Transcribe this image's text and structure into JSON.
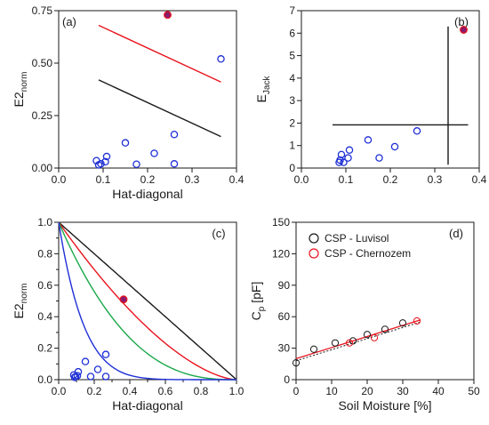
{
  "colors": {
    "axis": "#1a1a1a",
    "open_marker": "#1f2fd6",
    "red": "#e8141e",
    "black": "#1a1a1a",
    "green": "#1aa84a",
    "blue": "#1f2fd6",
    "highlight_fill": "#8a1a6e"
  },
  "chart_data": [
    {
      "id": "a",
      "type": "scatter",
      "panel_label": "(a)",
      "xlabel": "Hat-diagonal",
      "ylabel_main": "E2",
      "ylabel_sub": "norm",
      "xlim": [
        0,
        0.4
      ],
      "ylim": [
        0,
        0.75
      ],
      "xticks": [
        0,
        0.1,
        0.2,
        0.3,
        0.4
      ],
      "xtick_labels": [
        "0.0",
        "0.1",
        "0.2",
        "0.3",
        "0.4"
      ],
      "yticks": [
        0,
        0.25,
        0.5,
        0.75
      ],
      "ytick_labels": [
        "0.00",
        "0.25",
        "0.50",
        "0.75"
      ],
      "points": [
        {
          "x": 0.085,
          "y": 0.035
        },
        {
          "x": 0.09,
          "y": 0.015
        },
        {
          "x": 0.095,
          "y": 0.02
        },
        {
          "x": 0.105,
          "y": 0.03
        },
        {
          "x": 0.108,
          "y": 0.055
        },
        {
          "x": 0.15,
          "y": 0.12
        },
        {
          "x": 0.175,
          "y": 0.018
        },
        {
          "x": 0.215,
          "y": 0.07
        },
        {
          "x": 0.26,
          "y": 0.16
        },
        {
          "x": 0.26,
          "y": 0.02
        },
        {
          "x": 0.365,
          "y": 0.52
        }
      ],
      "highlight_points": [
        {
          "x": 0.245,
          "y": 0.73
        }
      ],
      "lines": [
        {
          "color": "red",
          "x": [
            0.09,
            0.365
          ],
          "y": [
            0.68,
            0.41
          ]
        },
        {
          "color": "black",
          "x": [
            0.09,
            0.365
          ],
          "y": [
            0.42,
            0.15
          ]
        }
      ]
    },
    {
      "id": "b",
      "type": "scatter",
      "panel_label": "(b)",
      "xlabel": "",
      "ylabel_main": "E",
      "ylabel_sub": "Jack",
      "xlim": [
        0,
        0.4
      ],
      "ylim": [
        0,
        7
      ],
      "xticks": [
        0,
        0.1,
        0.2,
        0.3,
        0.4
      ],
      "xtick_labels": [
        "0.0",
        "0.1",
        "0.2",
        "0.3",
        "0.4"
      ],
      "yticks": [
        0,
        1,
        2,
        3,
        4,
        5,
        6,
        7
      ],
      "ytick_labels": [
        "0",
        "1",
        "2",
        "3",
        "4",
        "5",
        "6",
        "7"
      ],
      "points": [
        {
          "x": 0.085,
          "y": 0.25
        },
        {
          "x": 0.087,
          "y": 0.35
        },
        {
          "x": 0.09,
          "y": 0.6
        },
        {
          "x": 0.095,
          "y": 0.25
        },
        {
          "x": 0.105,
          "y": 0.45
        },
        {
          "x": 0.108,
          "y": 0.8
        },
        {
          "x": 0.15,
          "y": 1.25
        },
        {
          "x": 0.175,
          "y": 0.45
        },
        {
          "x": 0.21,
          "y": 0.95
        },
        {
          "x": 0.26,
          "y": 1.65
        }
      ],
      "highlight_points": [
        {
          "x": 0.365,
          "y": 6.15
        }
      ],
      "lines": [
        {
          "color": "black",
          "x": [
            0.07,
            0.375
          ],
          "y": [
            1.92,
            1.92
          ]
        },
        {
          "color": "black",
          "x": [
            0.33,
            0.33
          ],
          "y": [
            0.15,
            6.3
          ]
        }
      ]
    },
    {
      "id": "c",
      "type": "scatter",
      "panel_label": "(c)",
      "xlabel": "Hat-diagonal",
      "ylabel_main": "E2",
      "ylabel_sub": "norm",
      "xlim": [
        0,
        1.0
      ],
      "ylim": [
        0,
        1.0
      ],
      "xticks": [
        0,
        0.1,
        0.2,
        0.3,
        0.4,
        0.5,
        0.6,
        0.7,
        0.8,
        0.9,
        1.0
      ],
      "xtick_labels": [
        "0.0",
        "",
        "0.2",
        "",
        "0.4",
        "",
        "0.6",
        "",
        "0.8",
        "",
        "1.0"
      ],
      "yticks": [
        0,
        0.1,
        0.2,
        0.3,
        0.4,
        0.5,
        0.6,
        0.7,
        0.8,
        0.9,
        1.0
      ],
      "ytick_labels": [
        "0.0",
        "",
        "0.2",
        "",
        "0.4",
        "",
        "0.6",
        "",
        "0.8",
        "",
        "1.0"
      ],
      "points": [
        {
          "x": 0.085,
          "y": 0.03
        },
        {
          "x": 0.09,
          "y": 0.015
        },
        {
          "x": 0.095,
          "y": 0.02
        },
        {
          "x": 0.105,
          "y": 0.025
        },
        {
          "x": 0.11,
          "y": 0.05
        },
        {
          "x": 0.15,
          "y": 0.115
        },
        {
          "x": 0.18,
          "y": 0.02
        },
        {
          "x": 0.22,
          "y": 0.065
        },
        {
          "x": 0.265,
          "y": 0.16
        },
        {
          "x": 0.265,
          "y": 0.02
        }
      ],
      "highlight_points": [
        {
          "x": 0.365,
          "y": 0.51
        }
      ],
      "curves": [
        {
          "color": "black",
          "exponent": 1
        },
        {
          "color": "red",
          "exponent": 1.6
        },
        {
          "color": "green",
          "exponent": 2.6
        },
        {
          "color": "blue",
          "exponent": 7
        }
      ]
    },
    {
      "id": "d",
      "type": "scatter",
      "panel_label": "(d)",
      "xlabel": "Soil Moisture [%]",
      "ylabel_main": "C",
      "ylabel_sub": "p",
      "ylabel_suffix": " [pF]",
      "xlim": [
        0,
        50
      ],
      "ylim": [
        0,
        150
      ],
      "xticks": [
        0,
        10,
        20,
        30,
        40,
        50
      ],
      "xtick_labels": [
        "0",
        "10",
        "20",
        "30",
        "40",
        "50"
      ],
      "yticks": [
        0,
        30,
        60,
        90,
        120,
        150
      ],
      "ytick_labels": [
        "0",
        "30",
        "60",
        "90",
        "120",
        "150"
      ],
      "series": [
        {
          "name": "CSP - Luvisol",
          "color": "black",
          "points": [
            {
              "x": 0,
              "y": 16
            },
            {
              "x": 5,
              "y": 29
            },
            {
              "x": 11,
              "y": 35
            },
            {
              "x": 16,
              "y": 37
            },
            {
              "x": 20,
              "y": 43
            },
            {
              "x": 25,
              "y": 48
            },
            {
              "x": 30,
              "y": 54
            }
          ]
        },
        {
          "name": "CSP - Chernozem",
          "color": "red",
          "points": [
            {
              "x": 15,
              "y": 35
            },
            {
              "x": 22,
              "y": 40
            },
            {
              "x": 34,
              "y": 56
            }
          ]
        }
      ],
      "fit": {
        "color": "red",
        "x": [
          0,
          35
        ],
        "y": [
          20,
          57
        ]
      },
      "fit2": {
        "color": "black",
        "x": [
          0,
          35
        ],
        "y": [
          18,
          55
        ]
      }
    }
  ]
}
